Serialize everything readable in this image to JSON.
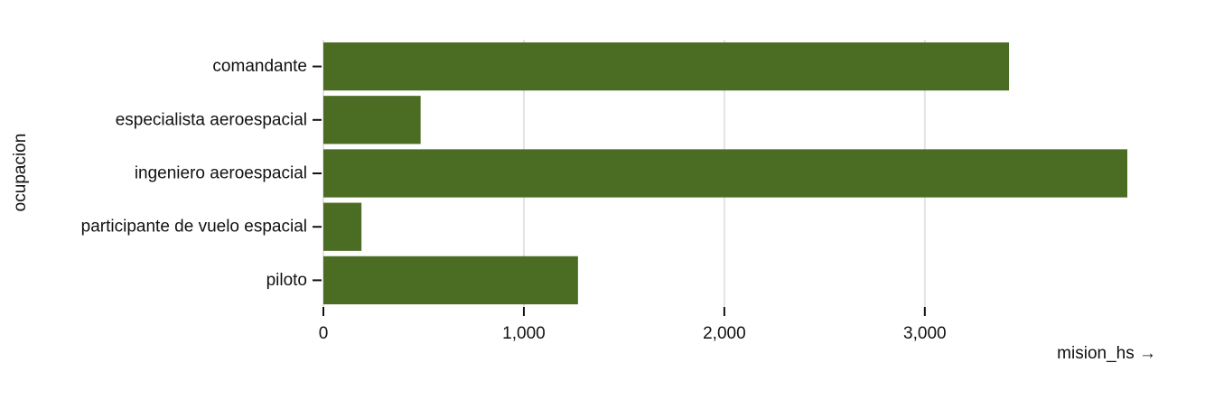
{
  "chart_data": {
    "type": "bar",
    "orientation": "horizontal",
    "title": "",
    "xlabel": "mision_hs →",
    "ylabel": "ocupacion",
    "categories": [
      "comandante",
      "especialista aeroespacial",
      "ingeniero aeroespacial",
      "participante de vuelo espacial",
      "piloto"
    ],
    "values": [
      3420,
      485,
      4010,
      190,
      1270
    ],
    "xlim": [
      0,
      4010
    ],
    "x_ticks": [
      0,
      1000,
      2000,
      3000
    ],
    "x_tick_labels": [
      "0",
      "1,000",
      "2,000",
      "3,000"
    ],
    "bar_color": "#4a6d23",
    "grid": "vertical",
    "legend": "none"
  }
}
